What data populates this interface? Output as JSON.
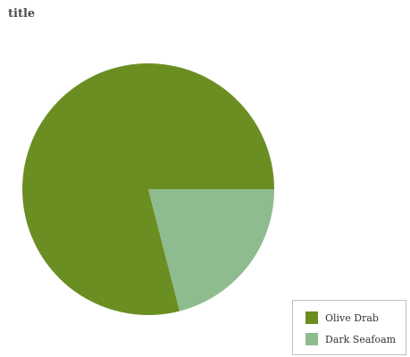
{
  "chart_data": {
    "type": "pie",
    "title": "title",
    "categories": [
      "Olive Drab",
      "Dark Seafoam"
    ],
    "values": [
      79,
      21
    ],
    "colors": [
      "#6b8e23",
      "#8fbc8f"
    ],
    "legend_position": "bottom-right",
    "legend": {
      "entries": [
        {
          "label": "Olive Drab",
          "color": "#6b8e23"
        },
        {
          "label": "Dark Seafoam",
          "color": "#8fbc8f"
        }
      ]
    }
  }
}
